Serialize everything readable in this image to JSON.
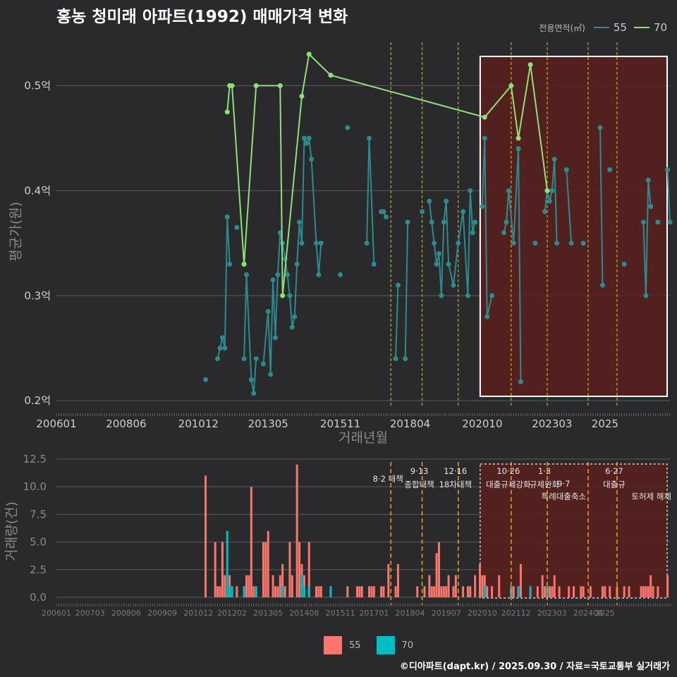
{
  "title": "홍농 청미래 아파트(1992) 매매가격 변화",
  "caption": "©디아파트(dapt.kr) / 2025.09.30 / 자료=국토교통부 실거래가",
  "colors": {
    "background": "#2a2a2c",
    "line55": "#2d8a8f",
    "line70": "#90e07a",
    "bar55": "#f8766d",
    "bar70": "#00bfc4",
    "policy": "#e8c21f",
    "shade": "#5a1f1f"
  },
  "chart_data": [
    {
      "type": "line",
      "title": "홍농 청미래 아파트(1992) 매매가격 변화",
      "xlabel": "거래년월",
      "ylabel": "평균가(원)",
      "legend_title": "전용면적(㎡)",
      "legend_position": "top-right",
      "x_ticks": [
        "200601",
        "200806",
        "201012",
        "201305",
        "201511",
        "201804",
        "202010",
        "202303",
        "2025"
      ],
      "y_ticks": [
        "0.2억",
        "0.3억",
        "0.4억",
        "0.5억"
      ],
      "ylim": [
        0.19,
        0.54
      ],
      "series": [
        {
          "name": "55",
          "points": [
            [
              2011.167,
              0.22
            ],
            [
              2011.583,
              0.24
            ],
            [
              2011.667,
              0.25
            ],
            [
              2011.75,
              0.26
            ],
            [
              2011.833,
              0.25
            ],
            [
              2011.917,
              0.375
            ],
            [
              2012.0,
              0.33
            ],
            [
              2012.25,
              0.365
            ],
            [
              2012.5,
              0.24
            ],
            [
              2012.583,
              0.32
            ],
            [
              2012.75,
              0.22
            ],
            [
              2012.833,
              0.207
            ],
            [
              2012.917,
              0.24
            ],
            [
              2013.167,
              0.235
            ],
            [
              2013.333,
              0.285
            ],
            [
              2013.417,
              0.225
            ],
            [
              2013.5,
              0.315
            ],
            [
              2013.583,
              0.26
            ],
            [
              2013.667,
              0.32
            ],
            [
              2013.75,
              0.36
            ],
            [
              2013.833,
              0.35
            ],
            [
              2013.917,
              0.335
            ],
            [
              2014.0,
              0.32
            ],
            [
              2014.083,
              0.3
            ],
            [
              2014.167,
              0.27
            ],
            [
              2014.25,
              0.28
            ],
            [
              2014.333,
              0.33
            ],
            [
              2014.417,
              0.37
            ],
            [
              2014.5,
              0.35
            ],
            [
              2014.583,
              0.45
            ],
            [
              2014.667,
              0.445
            ],
            [
              2014.75,
              0.45
            ],
            [
              2014.833,
              0.43
            ],
            [
              2015.0,
              0.35
            ],
            [
              2015.083,
              0.32
            ],
            [
              2015.167,
              0.35
            ],
            [
              2015.833,
              0.32
            ],
            [
              2016.083,
              0.46
            ],
            [
              2016.75,
              0.35
            ],
            [
              2016.833,
              0.45
            ],
            [
              2017.0,
              0.33
            ],
            [
              2017.25,
              0.38
            ],
            [
              2017.333,
              0.38
            ],
            [
              2017.417,
              0.375
            ],
            [
              2017.75,
              0.24
            ],
            [
              2017.833,
              0.31
            ],
            [
              2018.083,
              0.24
            ],
            [
              2018.167,
              0.37
            ],
            [
              2018.667,
              0.38
            ],
            [
              2018.917,
              0.39
            ],
            [
              2019.0,
              0.37
            ],
            [
              2019.083,
              0.35
            ],
            [
              2019.167,
              0.33
            ],
            [
              2019.25,
              0.34
            ],
            [
              2019.333,
              0.3
            ],
            [
              2019.417,
              0.37
            ],
            [
              2019.5,
              0.39
            ],
            [
              2019.583,
              0.33
            ],
            [
              2019.75,
              0.31
            ],
            [
              2019.917,
              0.35
            ],
            [
              2020.083,
              0.38
            ],
            [
              2020.25,
              0.3
            ],
            [
              2020.333,
              0.4
            ],
            [
              2020.417,
              0.36
            ],
            [
              2020.5,
              0.37
            ],
            [
              2020.75,
              0.385
            ],
            [
              2020.833,
              0.45
            ],
            [
              2020.917,
              0.28
            ],
            [
              2021.083,
              0.3
            ],
            [
              2021.5,
              0.36
            ],
            [
              2021.583,
              0.37
            ],
            [
              2021.667,
              0.4
            ],
            [
              2021.833,
              0.35
            ],
            [
              2022.0,
              0.44
            ],
            [
              2022.083,
              0.218
            ],
            [
              2022.583,
              0.35
            ],
            [
              2022.917,
              0.38
            ],
            [
              2023.0,
              0.4
            ],
            [
              2023.083,
              0.39
            ],
            [
              2023.167,
              0.4
            ],
            [
              2023.25,
              0.43
            ],
            [
              2023.333,
              0.35
            ],
            [
              2023.667,
              0.42
            ],
            [
              2023.833,
              0.35
            ],
            [
              2024.25,
              0.35
            ],
            [
              2024.833,
              0.46
            ],
            [
              2024.917,
              0.31
            ],
            [
              2025.167,
              0.42
            ],
            [
              2025.667,
              0.33
            ],
            [
              2026.333,
              0.37
            ],
            [
              2026.417,
              0.3
            ],
            [
              2026.5,
              0.41
            ],
            [
              2026.583,
              0.385
            ],
            [
              2026.833,
              0.37
            ],
            [
              2027.167,
              0.42
            ],
            [
              2027.25,
              0.37
            ]
          ]
        },
        {
          "name": "70",
          "points": [
            [
              2011.917,
              0.475
            ],
            [
              2012.0,
              0.5
            ],
            [
              2012.083,
              0.5
            ],
            [
              2012.5,
              0.33
            ],
            [
              2012.917,
              0.5
            ],
            [
              2013.75,
              0.5
            ],
            [
              2013.833,
              0.3
            ],
            [
              2014.5,
              0.49
            ],
            [
              2014.75,
              0.53
            ],
            [
              2015.5,
              0.51
            ],
            [
              2020.833,
              0.47
            ],
            [
              2021.75,
              0.5
            ],
            [
              2022.0,
              0.45
            ],
            [
              2022.417,
              0.52
            ],
            [
              2023.0,
              0.4
            ]
          ]
        }
      ],
      "policy_lines": [
        "2017-08",
        "2018-09",
        "2019-12",
        "2021-10",
        "2023-01",
        "2024-06",
        "2025-06"
      ],
      "shaded_range": [
        "2020-10",
        "2025-09"
      ]
    },
    {
      "type": "bar",
      "xlabel": "",
      "ylabel": "거래량(건)",
      "x_ticks": [
        "200601",
        "200703",
        "200806",
        "200909",
        "201012",
        "201202",
        "201305",
        "201408",
        "201511",
        "201701",
        "201804",
        "201907",
        "202010",
        "202112",
        "202303",
        "202406",
        "2025"
      ],
      "y_ticks": [
        "0.0",
        "2.5",
        "5.0",
        "7.5",
        "10.0",
        "12.5"
      ],
      "ylim": [
        0,
        12.5
      ],
      "legend_position": "bottom",
      "annotations": [
        {
          "date": "2017-08",
          "lines": [
            "8·2 대책"
          ]
        },
        {
          "date": "2018-09",
          "lines": [
            "9·13",
            "종합대책"
          ]
        },
        {
          "date": "2019-12",
          "lines": [
            "12·16",
            "18차대책"
          ]
        },
        {
          "date": "2021-10",
          "lines": [
            "10·26",
            "대출규제강화"
          ]
        },
        {
          "date": "2023-01",
          "lines": [
            "1·3",
            "규제완화"
          ]
        },
        {
          "date": "2023-09",
          "lines": [
            "9·7",
            "특례대출축소"
          ]
        },
        {
          "date": "2024-06",
          "lines": [
            "토허제 해제"
          ]
        },
        {
          "date": "2025-06",
          "lines": [
            "6·27",
            "대출규"
          ]
        }
      ],
      "series": [
        {
          "name": "55",
          "points": [
            [
              2011.167,
              11
            ],
            [
              2011.5,
              5
            ],
            [
              2011.583,
              1
            ],
            [
              2011.667,
              1
            ],
            [
              2011.75,
              5
            ],
            [
              2011.833,
              2
            ],
            [
              2012.0,
              2
            ],
            [
              2012.083,
              1
            ],
            [
              2012.25,
              1
            ],
            [
              2012.5,
              1
            ],
            [
              2012.583,
              2
            ],
            [
              2012.667,
              2
            ],
            [
              2012.75,
              10
            ],
            [
              2012.833,
              1
            ],
            [
              2013.167,
              5
            ],
            [
              2013.25,
              5
            ],
            [
              2013.333,
              6
            ],
            [
              2013.5,
              2
            ],
            [
              2013.583,
              1
            ],
            [
              2013.667,
              1
            ],
            [
              2013.75,
              2
            ],
            [
              2013.833,
              3
            ],
            [
              2013.917,
              1
            ],
            [
              2014.083,
              5
            ],
            [
              2014.167,
              2
            ],
            [
              2014.333,
              12
            ],
            [
              2014.417,
              5
            ],
            [
              2014.5,
              3
            ],
            [
              2014.583,
              2
            ],
            [
              2014.75,
              5
            ],
            [
              2015.0,
              1
            ],
            [
              2015.083,
              1
            ],
            [
              2015.167,
              1
            ],
            [
              2015.5,
              1
            ],
            [
              2016.083,
              1
            ],
            [
              2016.417,
              1
            ],
            [
              2016.5,
              1
            ],
            [
              2016.583,
              1
            ],
            [
              2016.833,
              1
            ],
            [
              2016.917,
              1
            ],
            [
              2017.0,
              1
            ],
            [
              2017.25,
              1
            ],
            [
              2017.333,
              1
            ],
            [
              2017.5,
              3
            ],
            [
              2017.75,
              1
            ],
            [
              2017.833,
              3
            ],
            [
              2018.5,
              1
            ],
            [
              2018.75,
              1
            ],
            [
              2018.917,
              2
            ],
            [
              2019.0,
              1
            ],
            [
              2019.083,
              1
            ],
            [
              2019.167,
              4
            ],
            [
              2019.25,
              5
            ],
            [
              2019.333,
              1
            ],
            [
              2019.417,
              1
            ],
            [
              2019.5,
              1
            ],
            [
              2019.583,
              2
            ],
            [
              2019.75,
              1
            ],
            [
              2019.833,
              2
            ],
            [
              2020.083,
              1
            ],
            [
              2020.25,
              1
            ],
            [
              2020.333,
              1
            ],
            [
              2020.5,
              2
            ],
            [
              2020.667,
              3
            ],
            [
              2020.75,
              2
            ],
            [
              2020.833,
              2
            ],
            [
              2020.917,
              1
            ],
            [
              2021.083,
              1
            ],
            [
              2021.333,
              2
            ],
            [
              2021.75,
              1
            ],
            [
              2021.833,
              1
            ],
            [
              2022.0,
              1
            ],
            [
              2022.083,
              3
            ],
            [
              2022.667,
              1
            ],
            [
              2022.833,
              2
            ],
            [
              2022.917,
              1
            ],
            [
              2023.0,
              1
            ],
            [
              2023.083,
              1
            ],
            [
              2023.167,
              1
            ],
            [
              2023.25,
              2
            ],
            [
              2023.417,
              1
            ],
            [
              2023.75,
              1
            ],
            [
              2023.917,
              1
            ],
            [
              2024.167,
              1
            ],
            [
              2024.25,
              1
            ],
            [
              2024.5,
              1
            ],
            [
              2024.917,
              1
            ],
            [
              2025.0,
              1
            ],
            [
              2025.167,
              1
            ],
            [
              2025.417,
              1
            ],
            [
              2025.667,
              1
            ],
            [
              2025.833,
              1
            ],
            [
              2026.25,
              1
            ],
            [
              2026.333,
              1
            ],
            [
              2026.417,
              1
            ],
            [
              2026.5,
              1
            ],
            [
              2026.583,
              2
            ],
            [
              2026.667,
              1
            ],
            [
              2026.833,
              1
            ],
            [
              2027.167,
              2
            ]
          ]
        },
        {
          "name": "70",
          "points": [
            [
              2011.917,
              6
            ],
            [
              2012.0,
              1
            ],
            [
              2012.083,
              1
            ],
            [
              2012.5,
              1
            ],
            [
              2012.917,
              1
            ],
            [
              2013.833,
              1
            ],
            [
              2014.5,
              2
            ],
            [
              2014.583,
              1
            ],
            [
              2014.75,
              1
            ],
            [
              2015.5,
              1
            ],
            [
              2020.833,
              1
            ],
            [
              2021.75,
              1
            ],
            [
              2022.0,
              1
            ],
            [
              2022.417,
              1
            ],
            [
              2023.0,
              1
            ]
          ]
        }
      ]
    }
  ]
}
